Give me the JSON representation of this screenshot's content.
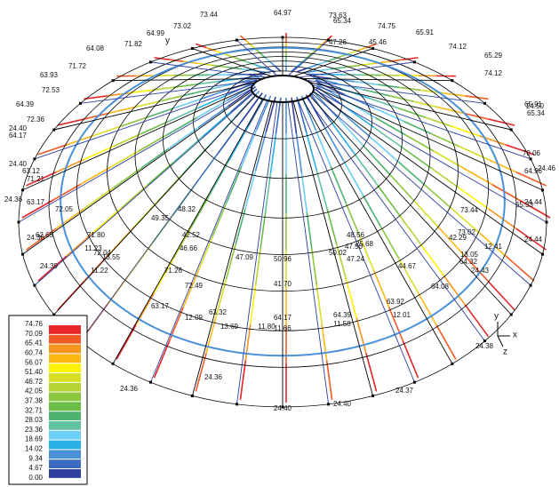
{
  "legend": {
    "levels": [
      "74.76",
      "70.09",
      "65.41",
      "60.74",
      "56.07",
      "51.40",
      "46.72",
      "42.05",
      "37.38",
      "32.71",
      "28.03",
      "23.36",
      "18.69",
      "14.02",
      "9.34",
      "4.67",
      "0.00"
    ]
  },
  "axes": {
    "x": "x",
    "y": "y",
    "z": "z",
    "dome_y": "y"
  },
  "labels": [
    "64.97",
    "73.44",
    "73.02",
    "64.99",
    "71.82",
    "64.08",
    "71.72",
    "63.93",
    "72.53",
    "64.39",
    "72.36",
    "24.40",
    "64.17",
    "24.40",
    "63.12",
    "71.21",
    "24.36",
    "63.17",
    "72.05",
    "62.65",
    "71.80",
    "24.36",
    "72.04",
    "24.39",
    "71.26",
    "72.49",
    "63.17",
    "63.32",
    "24.39",
    "24.36",
    "24.36",
    "11.80",
    "64.17",
    "24.40",
    "24.40",
    "64.39",
    "63.92",
    "24.37",
    "64.08",
    "24.38",
    "64.32",
    "24.43",
    "73.02",
    "73.44",
    "65.33",
    "24.44",
    "24.44",
    "64.96",
    "24.46",
    "70.06",
    "65.34",
    "65.91",
    "24.50",
    "74.12",
    "65.29",
    "74.12",
    "65.91",
    "74.75",
    "73.63",
    "65.34",
    "49.35",
    "48.32",
    "46.66",
    "47.09",
    "50.96",
    "50.02",
    "47.50",
    "48.56",
    "25.68",
    "42.29",
    "13.05",
    "12.41",
    "11.22",
    "11.23",
    "13.55",
    "12.09",
    "11.58",
    "12.01",
    "11.66",
    "13.69",
    "42.52",
    "44.67",
    "47.24",
    "41.70",
    "47.26",
    "45.46"
  ]
}
